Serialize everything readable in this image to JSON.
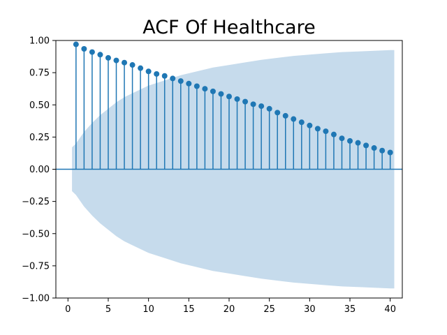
{
  "chart_data": {
    "type": "stem",
    "title": "ACF Of Healthcare",
    "xlabel": "",
    "ylabel": "",
    "xlim": [
      -1.5,
      41.5
    ],
    "ylim": [
      -1.0,
      1.0
    ],
    "xticks": [
      0,
      5,
      10,
      15,
      20,
      25,
      30,
      35,
      40
    ],
    "xtick_labels": [
      "0",
      "5",
      "10",
      "15",
      "20",
      "25",
      "30",
      "35",
      "40"
    ],
    "yticks": [
      1.0,
      0.75,
      0.5,
      0.25,
      0.0,
      -0.25,
      -0.5,
      -0.75,
      -1.0
    ],
    "ytick_labels": [
      "1.00",
      "0.75",
      "0.50",
      "0.25",
      "0.00",
      "−0.25",
      "−0.50",
      "−0.75",
      "−1.00"
    ],
    "grid": false,
    "lags": [
      1,
      2,
      3,
      4,
      5,
      6,
      7,
      8,
      9,
      10,
      11,
      12,
      13,
      14,
      15,
      16,
      17,
      18,
      19,
      20,
      21,
      22,
      23,
      24,
      25,
      26,
      27,
      28,
      29,
      30,
      31,
      32,
      33,
      34,
      35,
      36,
      37,
      38,
      39,
      40
    ],
    "acf": [
      0.97,
      0.935,
      0.91,
      0.89,
      0.865,
      0.845,
      0.828,
      0.81,
      0.785,
      0.76,
      0.74,
      0.725,
      0.705,
      0.685,
      0.665,
      0.645,
      0.625,
      0.605,
      0.585,
      0.565,
      0.545,
      0.525,
      0.505,
      0.49,
      0.47,
      0.44,
      0.415,
      0.39,
      0.365,
      0.34,
      0.315,
      0.295,
      0.27,
      0.24,
      0.22,
      0.205,
      0.185,
      0.165,
      0.145,
      0.13
    ],
    "confidence_band": {
      "x": [
        0.5,
        1,
        2,
        3,
        4,
        5,
        6,
        7,
        8,
        9,
        10,
        12,
        14,
        16,
        18,
        20,
        22,
        24,
        26,
        28,
        30,
        32,
        34,
        36,
        38,
        40,
        40.5
      ],
      "upper": [
        0.17,
        0.2,
        0.29,
        0.36,
        0.42,
        0.47,
        0.52,
        0.56,
        0.59,
        0.62,
        0.65,
        0.69,
        0.73,
        0.76,
        0.79,
        0.81,
        0.83,
        0.85,
        0.865,
        0.88,
        0.89,
        0.9,
        0.91,
        0.915,
        0.92,
        0.925,
        0.925
      ]
    },
    "colors": {
      "stem": "#1f77b4",
      "band": "#c6dbec",
      "zero_line": "#1f77b4"
    }
  }
}
